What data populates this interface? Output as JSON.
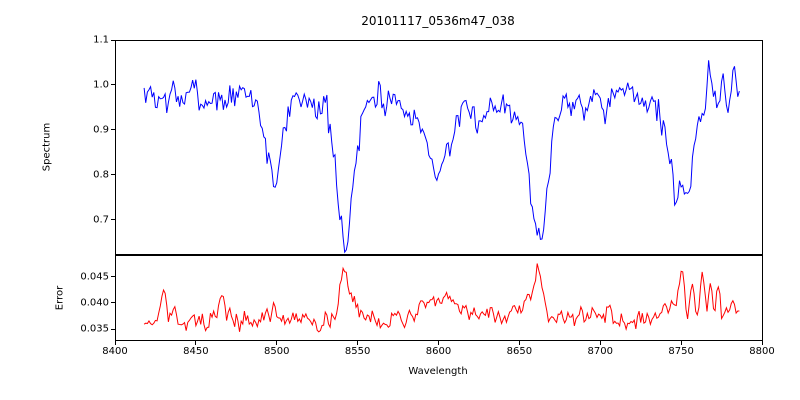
{
  "chart_data": [
    {
      "type": "line",
      "title": "20101117_0536m47_038",
      "ylabel": "Spectrum",
      "xlim": [
        8400,
        8800
      ],
      "ylim": [
        0.6222,
        1.1
      ],
      "ytick_values": [
        1.1,
        1.0,
        0.9,
        0.8,
        0.7
      ],
      "ytick_labels": [
        "1.1",
        "1.0",
        "0.9",
        "0.8",
        "0.7"
      ],
      "color": "#0000ff",
      "x_start": 8418,
      "x_end": 8786,
      "x_step": 1,
      "continuum": 0.972,
      "noise_sigma": 0.018,
      "noise_ar": 0.45,
      "seed": 7,
      "absorption_lines": [
        {
          "center": 8498,
          "depth": 0.185,
          "width": 4.5
        },
        {
          "center": 8542,
          "depth": 0.315,
          "width": 5.5
        },
        {
          "center": 8598,
          "depth": 0.13,
          "width": 7
        },
        {
          "center": 8615,
          "depth": 0.05,
          "width": 14
        },
        {
          "center": 8662,
          "depth": 0.32,
          "width": 5.5
        },
        {
          "center": 8750,
          "depth": 0.245,
          "width": 6.5
        }
      ],
      "emission_spikes": [
        {
          "center": 8767,
          "amp": 0.085,
          "width": 1.2
        },
        {
          "center": 8776,
          "amp": 0.05,
          "width": 1.0
        },
        {
          "center": 8783,
          "amp": 0.07,
          "width": 1.2
        }
      ],
      "grid": false,
      "legend": null
    },
    {
      "type": "line",
      "ylabel": "Error",
      "xlabel": "Wavelength",
      "xlim": [
        8400,
        8800
      ],
      "ylim": [
        0.0327,
        0.0492
      ],
      "ytick_values": [
        0.045,
        0.04,
        0.035
      ],
      "ytick_labels": [
        "0.045",
        "0.040",
        "0.035"
      ],
      "xtick_values": [
        8400,
        8450,
        8500,
        8550,
        8600,
        8650,
        8700,
        8750,
        8800
      ],
      "xtick_labels": [
        "8400",
        "8450",
        "8500",
        "8550",
        "8600",
        "8650",
        "8700",
        "8750",
        "8800"
      ],
      "color": "#ff0000",
      "x_start": 8418,
      "x_end": 8786,
      "x_step": 1,
      "baseline": 0.0366,
      "slope_per_angstrom": 3e-06,
      "noise_sigma": 0.0009,
      "noise_ar": 0.45,
      "seed": 13,
      "bumps": [
        {
          "center": 8430,
          "amp": 0.0072,
          "width": 1.2
        },
        {
          "center": 8466,
          "amp": 0.0063,
          "width": 1.2
        },
        {
          "center": 8497,
          "amp": 0.0018,
          "width": 2.5
        },
        {
          "center": 8541,
          "amp": 0.0075,
          "width": 2.5
        },
        {
          "center": 8546,
          "amp": 0.0028,
          "width": 4
        },
        {
          "center": 8605,
          "amp": 0.0028,
          "width": 12
        },
        {
          "center": 8656,
          "amp": 0.002,
          "width": 3
        },
        {
          "center": 8662,
          "amp": 0.0098,
          "width": 2.5
        },
        {
          "center": 8745,
          "amp": 0.002,
          "width": 6
        },
        {
          "center": 8750,
          "amp": 0.0068,
          "width": 1.5
        },
        {
          "center": 8757,
          "amp": 0.005,
          "width": 1.2
        },
        {
          "center": 8763,
          "amp": 0.0082,
          "width": 1.4
        },
        {
          "center": 8768,
          "amp": 0.0062,
          "width": 1.2
        },
        {
          "center": 8773,
          "amp": 0.0045,
          "width": 1.0
        }
      ],
      "grid": false,
      "legend": null
    }
  ]
}
